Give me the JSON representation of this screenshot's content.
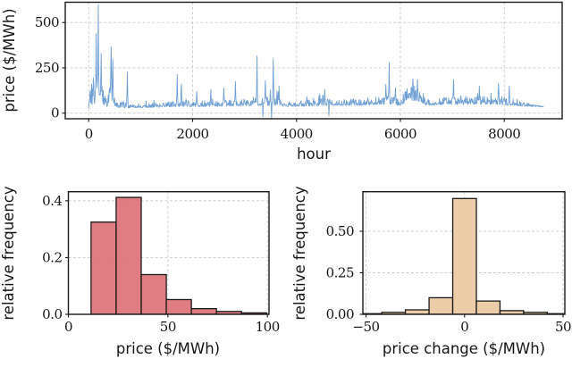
{
  "figure": {
    "background": "#ffffff",
    "spine_color": "#1a1a1a",
    "grid_color": "#c9c9c9",
    "text_color": "#151515"
  },
  "chart_data": [
    {
      "id": "price-timeseries",
      "type": "line",
      "title": "",
      "xlabel": "hour",
      "ylabel": "price ($/MWh)",
      "xlim": [
        -452,
        9114
      ],
      "ylim": [
        -31,
        612
      ],
      "xticks": [
        0,
        2000,
        4000,
        6000,
        8000
      ],
      "xtick_labels": [
        "0",
        "2000",
        "4000",
        "6000",
        "8000"
      ],
      "yticks": [
        0,
        250,
        500
      ],
      "ytick_labels": [
        "0",
        "250",
        "500"
      ],
      "grid": true,
      "legend": "none",
      "line_color": "#6f9fd4",
      "series_model": {
        "comment": "hourly electricity price for one year, approx envelope read from pixels",
        "start": 0,
        "end": 8760,
        "step": 8,
        "seed": 7,
        "clip": [
          -29,
          598
        ],
        "spike_prob": 0.045,
        "anchors": [
          [
            0,
            28,
            6,
            0
          ],
          [
            20,
            60,
            90,
            120
          ],
          [
            180,
            90,
            110,
            150
          ],
          [
            300,
            60,
            70,
            80
          ],
          [
            360,
            40,
            25,
            30
          ],
          [
            420,
            110,
            90,
            120
          ],
          [
            470,
            55,
            35,
            40
          ],
          [
            560,
            34,
            14,
            25
          ],
          [
            700,
            36,
            30,
            60
          ],
          [
            760,
            32,
            12,
            30
          ],
          [
            1000,
            33,
            13,
            35
          ],
          [
            1500,
            38,
            18,
            60
          ],
          [
            1750,
            42,
            22,
            70
          ],
          [
            2000,
            40,
            18,
            55
          ],
          [
            2400,
            42,
            20,
            60
          ],
          [
            2900,
            45,
            22,
            65
          ],
          [
            3250,
            50,
            30,
            90
          ],
          [
            3600,
            48,
            28,
            80
          ],
          [
            3800,
            40,
            16,
            45
          ],
          [
            4300,
            45,
            22,
            60
          ],
          [
            4700,
            50,
            26,
            60
          ],
          [
            5200,
            48,
            22,
            55
          ],
          [
            5600,
            55,
            30,
            60
          ],
          [
            5800,
            60,
            35,
            70
          ],
          [
            6000,
            45,
            20,
            40
          ],
          [
            6150,
            85,
            55,
            70
          ],
          [
            6350,
            80,
            50,
            65
          ],
          [
            6500,
            50,
            24,
            50
          ],
          [
            7000,
            55,
            30,
            70
          ],
          [
            7400,
            55,
            30,
            70
          ],
          [
            7800,
            58,
            32,
            65
          ],
          [
            8100,
            50,
            26,
            50
          ],
          [
            8300,
            44,
            16,
            25
          ],
          [
            8600,
            38,
            8,
            10
          ],
          [
            8760,
            36,
            4,
            0
          ]
        ],
        "spikes": [
          [
            145,
            440
          ],
          [
            185,
            598
          ],
          [
            240,
            330
          ],
          [
            430,
            366
          ],
          [
            460,
            300
          ],
          [
            740,
            225
          ],
          [
            1700,
            215
          ],
          [
            1780,
            160
          ],
          [
            2080,
            120
          ],
          [
            2350,
            130
          ],
          [
            2600,
            140
          ],
          [
            2820,
            175
          ],
          [
            3240,
            315
          ],
          [
            3400,
            180
          ],
          [
            3550,
            300
          ],
          [
            3660,
            150
          ],
          [
            4540,
            130
          ],
          [
            5717,
            160
          ],
          [
            5786,
            280
          ],
          [
            5906,
            140
          ],
          [
            6240,
            190
          ],
          [
            6330,
            185
          ],
          [
            7024,
            185
          ],
          [
            7523,
            150
          ],
          [
            7890,
            165
          ],
          [
            8096,
            150
          ]
        ],
        "dips": [
          [
            3350,
            -20
          ],
          [
            3520,
            -29
          ],
          [
            4620,
            -15
          ]
        ]
      }
    },
    {
      "id": "price-histogram",
      "type": "bar",
      "title": "",
      "xlabel": "price ($/MWh)",
      "ylabel": "relative frequency",
      "xlim": [
        0,
        100.8
      ],
      "ylim": [
        0,
        0.432
      ],
      "xticks": [
        0,
        50,
        100
      ],
      "xtick_labels": [
        "0",
        "50",
        "100"
      ],
      "yticks": [
        0,
        0.2,
        0.4
      ],
      "ytick_labels": [
        "0.0",
        "0.2",
        "0.4"
      ],
      "grid": true,
      "legend": "none",
      "bar_color": "#dd7277",
      "edge_color": "#1a1a1a",
      "bin_edges": [
        11.4,
        24.0,
        36.6,
        49.2,
        61.8,
        74.4,
        87.0,
        99.6
      ],
      "values": [
        0.325,
        0.412,
        0.14,
        0.052,
        0.02,
        0.01,
        0.005
      ]
    },
    {
      "id": "price-change-histogram",
      "type": "bar",
      "title": "",
      "xlabel": "price change ($/MWh)",
      "ylabel": "relative frequency",
      "xlim": [
        -51.6,
        50.9
      ],
      "ylim": [
        0,
        0.738
      ],
      "xticks": [
        -50,
        0,
        50
      ],
      "xtick_labels": [
        "−50",
        "0",
        "50"
      ],
      "yticks": [
        0,
        0.25,
        0.5
      ],
      "ytick_labels": [
        "0.00",
        "0.25",
        "0.50"
      ],
      "grid": true,
      "legend": "none",
      "bar_color": "#eac99f",
      "edge_color": "#1a1a1a",
      "bin_edges": [
        -54,
        -42,
        -30,
        -18,
        -6,
        6,
        18,
        30,
        42,
        54
      ],
      "values": [
        0.004,
        0.012,
        0.027,
        0.1,
        0.697,
        0.08,
        0.022,
        0.012,
        0.004
      ]
    }
  ]
}
